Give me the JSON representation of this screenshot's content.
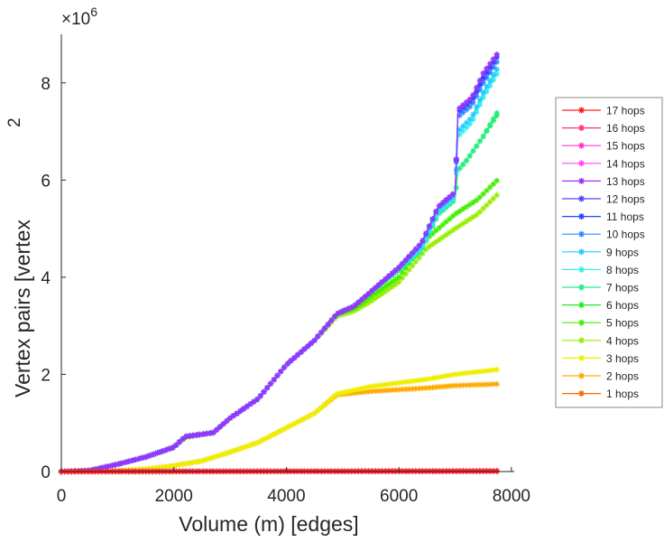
{
  "chart_data": {
    "type": "line",
    "xlabel": "Volume (m) [edges]",
    "ylabel": "Vertex pairs [vertex",
    "ylabel_superscript": "2",
    "y_multiplier": "×10",
    "y_multiplier_exp": "6",
    "xlim": [
      0,
      8050
    ],
    "ylim": [
      0,
      9
    ],
    "xticks": [
      0,
      2000,
      4000,
      6000,
      8000
    ],
    "xtick_labels": [
      "0",
      "2000",
      "4000",
      "6000",
      "8000"
    ],
    "yticks": [
      0,
      2,
      4,
      6,
      8
    ],
    "ytick_labels": [
      "0",
      "2",
      "4",
      "6",
      "8"
    ],
    "legend_position": "right",
    "series": [
      {
        "name": "17 hops",
        "color": "#ff2020",
        "points": [
          [
            0,
            0
          ],
          [
            7750,
            0.01
          ]
        ]
      },
      {
        "name": "16 hops",
        "color": "#ff3377",
        "points": [
          [
            0,
            0
          ],
          [
            7750,
            0.01
          ]
        ]
      },
      {
        "name": "15 hops",
        "color": "#ff33cc",
        "points": [
          [
            0,
            0
          ],
          [
            7750,
            0.01
          ]
        ]
      },
      {
        "name": "14 hops",
        "color": "#ff44ff",
        "points": [
          [
            0,
            0
          ],
          [
            7750,
            0.01
          ]
        ]
      },
      {
        "name": "13 hops",
        "color": "#9933ff",
        "points": [
          [
            0,
            0
          ],
          [
            500,
            0.02
          ],
          [
            1000,
            0.15
          ],
          [
            1500,
            0.3
          ],
          [
            2000,
            0.5
          ],
          [
            2200,
            0.72
          ],
          [
            2700,
            0.8
          ],
          [
            3000,
            1.1
          ],
          [
            3500,
            1.5
          ],
          [
            4000,
            2.2
          ],
          [
            4500,
            2.7
          ],
          [
            4900,
            3.25
          ],
          [
            5200,
            3.4
          ],
          [
            5500,
            3.7
          ],
          [
            6000,
            4.2
          ],
          [
            6400,
            4.7
          ],
          [
            6700,
            5.45
          ],
          [
            7000,
            5.75
          ],
          [
            7050,
            7.45
          ],
          [
            7300,
            7.7
          ],
          [
            7500,
            8.2
          ],
          [
            7750,
            8.6
          ]
        ]
      },
      {
        "name": "12 hops",
        "color": "#5544ff",
        "points": [
          [
            0,
            0
          ],
          [
            500,
            0.02
          ],
          [
            1000,
            0.15
          ],
          [
            1500,
            0.3
          ],
          [
            2000,
            0.5
          ],
          [
            2200,
            0.72
          ],
          [
            2700,
            0.8
          ],
          [
            3000,
            1.1
          ],
          [
            3500,
            1.5
          ],
          [
            4000,
            2.2
          ],
          [
            4500,
            2.7
          ],
          [
            4900,
            3.25
          ],
          [
            5200,
            3.4
          ],
          [
            5500,
            3.7
          ],
          [
            6000,
            4.2
          ],
          [
            6400,
            4.7
          ],
          [
            6700,
            5.45
          ],
          [
            7000,
            5.75
          ],
          [
            7050,
            7.45
          ],
          [
            7300,
            7.7
          ],
          [
            7500,
            8.2
          ],
          [
            7750,
            8.6
          ]
        ]
      },
      {
        "name": "11 hops",
        "color": "#2244ff",
        "points": [
          [
            0,
            0
          ],
          [
            500,
            0.02
          ],
          [
            1000,
            0.15
          ],
          [
            1500,
            0.3
          ],
          [
            2000,
            0.5
          ],
          [
            2200,
            0.72
          ],
          [
            2700,
            0.8
          ],
          [
            3000,
            1.1
          ],
          [
            3500,
            1.5
          ],
          [
            4000,
            2.2
          ],
          [
            4500,
            2.7
          ],
          [
            4900,
            3.25
          ],
          [
            5200,
            3.4
          ],
          [
            5500,
            3.7
          ],
          [
            6000,
            4.2
          ],
          [
            6400,
            4.7
          ],
          [
            6700,
            5.45
          ],
          [
            7000,
            5.75
          ],
          [
            7050,
            7.4
          ],
          [
            7300,
            7.65
          ],
          [
            7500,
            8.1
          ],
          [
            7750,
            8.55
          ]
        ]
      },
      {
        "name": "10 hops",
        "color": "#3388ff",
        "points": [
          [
            0,
            0
          ],
          [
            500,
            0.02
          ],
          [
            1000,
            0.15
          ],
          [
            1500,
            0.3
          ],
          [
            2000,
            0.5
          ],
          [
            2200,
            0.72
          ],
          [
            2700,
            0.8
          ],
          [
            3000,
            1.1
          ],
          [
            3500,
            1.5
          ],
          [
            4000,
            2.2
          ],
          [
            4500,
            2.7
          ],
          [
            4900,
            3.25
          ],
          [
            5200,
            3.4
          ],
          [
            5500,
            3.7
          ],
          [
            6000,
            4.2
          ],
          [
            6400,
            4.7
          ],
          [
            6700,
            5.45
          ],
          [
            7000,
            5.75
          ],
          [
            7050,
            7.3
          ],
          [
            7300,
            7.55
          ],
          [
            7500,
            8.0
          ],
          [
            7750,
            8.45
          ]
        ]
      },
      {
        "name": "9 hops",
        "color": "#22ccff",
        "points": [
          [
            0,
            0
          ],
          [
            500,
            0.02
          ],
          [
            1000,
            0.15
          ],
          [
            1500,
            0.3
          ],
          [
            2000,
            0.5
          ],
          [
            2200,
            0.72
          ],
          [
            2700,
            0.8
          ],
          [
            3000,
            1.1
          ],
          [
            3500,
            1.5
          ],
          [
            4000,
            2.2
          ],
          [
            4500,
            2.7
          ],
          [
            4900,
            3.25
          ],
          [
            5200,
            3.4
          ],
          [
            5500,
            3.7
          ],
          [
            6000,
            4.2
          ],
          [
            6400,
            4.65
          ],
          [
            6700,
            5.4
          ],
          [
            7000,
            5.7
          ],
          [
            7050,
            7.0
          ],
          [
            7300,
            7.3
          ],
          [
            7500,
            7.8
          ],
          [
            7750,
            8.3
          ]
        ]
      },
      {
        "name": "8 hops",
        "color": "#33eeee",
        "points": [
          [
            0,
            0
          ],
          [
            500,
            0.02
          ],
          [
            1000,
            0.15
          ],
          [
            1500,
            0.3
          ],
          [
            2000,
            0.5
          ],
          [
            2200,
            0.72
          ],
          [
            2700,
            0.8
          ],
          [
            3000,
            1.1
          ],
          [
            3500,
            1.5
          ],
          [
            4000,
            2.2
          ],
          [
            4500,
            2.7
          ],
          [
            4900,
            3.25
          ],
          [
            5200,
            3.4
          ],
          [
            5500,
            3.7
          ],
          [
            6000,
            4.2
          ],
          [
            6400,
            4.6
          ],
          [
            6700,
            5.35
          ],
          [
            7000,
            5.65
          ],
          [
            7050,
            6.9
          ],
          [
            7300,
            7.2
          ],
          [
            7500,
            7.7
          ],
          [
            7750,
            8.2
          ]
        ]
      },
      {
        "name": "7 hops",
        "color": "#22ee88",
        "points": [
          [
            0,
            0
          ],
          [
            500,
            0.02
          ],
          [
            1000,
            0.15
          ],
          [
            1500,
            0.3
          ],
          [
            2000,
            0.5
          ],
          [
            2200,
            0.72
          ],
          [
            2700,
            0.8
          ],
          [
            3000,
            1.1
          ],
          [
            3500,
            1.5
          ],
          [
            4000,
            2.2
          ],
          [
            4500,
            2.7
          ],
          [
            4900,
            3.25
          ],
          [
            5200,
            3.4
          ],
          [
            5500,
            3.7
          ],
          [
            6000,
            4.15
          ],
          [
            6400,
            4.55
          ],
          [
            6700,
            5.3
          ],
          [
            7000,
            5.6
          ],
          [
            7050,
            6.2
          ],
          [
            7200,
            6.4
          ],
          [
            7500,
            6.9
          ],
          [
            7750,
            7.4
          ]
        ]
      },
      {
        "name": "6 hops",
        "color": "#22ee22",
        "points": [
          [
            0,
            0
          ],
          [
            500,
            0.02
          ],
          [
            1000,
            0.15
          ],
          [
            1500,
            0.3
          ],
          [
            2000,
            0.5
          ],
          [
            2200,
            0.72
          ],
          [
            2700,
            0.8
          ],
          [
            3000,
            1.1
          ],
          [
            3500,
            1.5
          ],
          [
            4000,
            2.2
          ],
          [
            4500,
            2.7
          ],
          [
            4900,
            3.25
          ],
          [
            5200,
            3.4
          ],
          [
            5500,
            3.7
          ],
          [
            6000,
            4.15
          ],
          [
            6400,
            4.55
          ],
          [
            6700,
            5.3
          ],
          [
            7000,
            5.6
          ],
          [
            7050,
            6.2
          ],
          [
            7200,
            6.4
          ],
          [
            7500,
            6.9
          ],
          [
            7750,
            7.35
          ]
        ]
      },
      {
        "name": "5 hops",
        "color": "#44ee00",
        "points": [
          [
            0,
            0
          ],
          [
            500,
            0.02
          ],
          [
            1000,
            0.15
          ],
          [
            1500,
            0.3
          ],
          [
            2000,
            0.5
          ],
          [
            2200,
            0.72
          ],
          [
            2700,
            0.8
          ],
          [
            3000,
            1.1
          ],
          [
            3500,
            1.5
          ],
          [
            4000,
            2.2
          ],
          [
            4500,
            2.7
          ],
          [
            4900,
            3.25
          ],
          [
            5200,
            3.35
          ],
          [
            5500,
            3.6
          ],
          [
            6000,
            4.0
          ],
          [
            6500,
            4.8
          ],
          [
            7000,
            5.3
          ],
          [
            7400,
            5.6
          ],
          [
            7750,
            6.0
          ]
        ]
      },
      {
        "name": "4 hops",
        "color": "#99ee00",
        "points": [
          [
            0,
            0
          ],
          [
            500,
            0.02
          ],
          [
            1000,
            0.15
          ],
          [
            1500,
            0.3
          ],
          [
            2000,
            0.5
          ],
          [
            2200,
            0.7
          ],
          [
            2700,
            0.8
          ],
          [
            3000,
            1.1
          ],
          [
            3500,
            1.5
          ],
          [
            4000,
            2.2
          ],
          [
            4500,
            2.7
          ],
          [
            4900,
            3.2
          ],
          [
            5200,
            3.3
          ],
          [
            5500,
            3.5
          ],
          [
            6000,
            3.9
          ],
          [
            6500,
            4.6
          ],
          [
            7000,
            5.0
          ],
          [
            7400,
            5.3
          ],
          [
            7750,
            5.7
          ]
        ]
      },
      {
        "name": "3 hops",
        "color": "#eeee00",
        "points": [
          [
            0,
            0
          ],
          [
            1000,
            0.02
          ],
          [
            1500,
            0.05
          ],
          [
            2000,
            0.12
          ],
          [
            2500,
            0.22
          ],
          [
            3000,
            0.4
          ],
          [
            3500,
            0.6
          ],
          [
            4000,
            0.9
          ],
          [
            4500,
            1.2
          ],
          [
            4900,
            1.6
          ],
          [
            5500,
            1.75
          ],
          [
            6500,
            1.9
          ],
          [
            7000,
            2.0
          ],
          [
            7750,
            2.1
          ]
        ]
      },
      {
        "name": "2 hops",
        "color": "#ffaa00",
        "points": [
          [
            0,
            0
          ],
          [
            1000,
            0.02
          ],
          [
            1500,
            0.05
          ],
          [
            2000,
            0.12
          ],
          [
            2500,
            0.22
          ],
          [
            3000,
            0.4
          ],
          [
            3500,
            0.6
          ],
          [
            4000,
            0.9
          ],
          [
            4500,
            1.2
          ],
          [
            4900,
            1.58
          ],
          [
            5500,
            1.65
          ],
          [
            6500,
            1.72
          ],
          [
            7000,
            1.77
          ],
          [
            7750,
            1.8
          ]
        ]
      },
      {
        "name": "1 hops",
        "color": "#ff6600",
        "points": [
          [
            0,
            0
          ],
          [
            7750,
            0.005
          ]
        ]
      }
    ]
  }
}
